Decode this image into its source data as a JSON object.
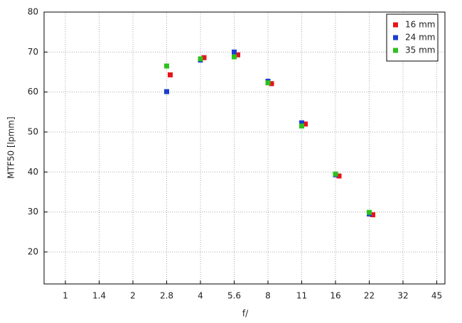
{
  "chart_data": {
    "type": "scatter",
    "x_label": "f/",
    "y_label": "MTF50 [lpmm]",
    "categories": [
      "1",
      "1.4",
      "2",
      "2.8",
      "4",
      "5.6",
      "8",
      "11",
      "16",
      "22",
      "32",
      "45"
    ],
    "series": [
      {
        "name": "16 mm",
        "color": "#e8141a",
        "values": [
          null,
          null,
          null,
          64.3,
          68.6,
          69.3,
          62.1,
          52.0,
          39.0,
          29.3,
          null,
          null
        ]
      },
      {
        "name": "24 mm",
        "color": "#1b3fd0",
        "values": [
          null,
          null,
          null,
          60.1,
          68.0,
          70.0,
          62.7,
          52.3,
          39.3,
          29.5,
          null,
          null
        ]
      },
      {
        "name": "35 mm",
        "color": "#2ec01f",
        "values": [
          null,
          null,
          null,
          66.5,
          68.3,
          68.8,
          62.3,
          51.5,
          39.5,
          29.9,
          null,
          null
        ]
      }
    ],
    "ylim": [
      12,
      80
    ],
    "yticks": [
      20,
      30,
      40,
      50,
      60,
      70,
      80
    ],
    "grid": true,
    "legend": "upper right"
  }
}
